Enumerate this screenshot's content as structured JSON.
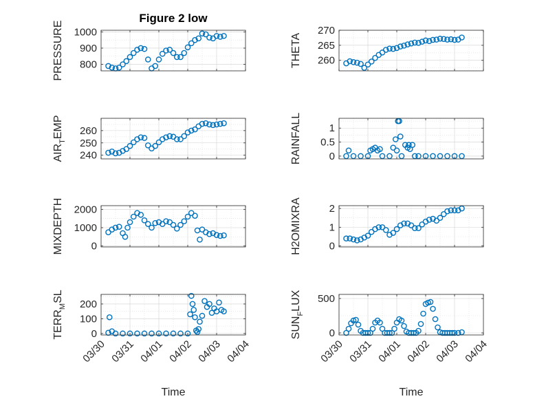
{
  "figure": {
    "title": "Figure 2 low",
    "xlabel": "Time"
  },
  "series_color": "#0072BD",
  "x_ticks": [
    "03/30",
    "03/31",
    "04/01",
    "04/02",
    "04/03",
    "04/04"
  ],
  "chart_data": [
    {
      "type": "scatter",
      "name": "pressure",
      "title": "Figure 2 low",
      "ylabel": "PRESSURE",
      "ylim": [
        760,
        1010
      ],
      "yticks": [
        "800",
        "900",
        "1000"
      ],
      "xlim": [
        "03/30",
        "04/04"
      ],
      "grid": "on",
      "x": [
        "03/30 06:00",
        "03/30 09:00",
        "03/30 12:00",
        "03/30 15:00",
        "03/30 18:00",
        "03/30 21:00",
        "03/31 00:00",
        "03/31 03:00",
        "03/31 06:00",
        "03/31 09:00",
        "03/31 12:00",
        "03/31 15:00",
        "03/31 18:00",
        "03/31 21:00",
        "04/01 00:00",
        "04/01 03:00",
        "04/01 06:00",
        "04/01 09:00",
        "04/01 12:00",
        "04/01 15:00",
        "04/01 18:00",
        "04/01 21:00",
        "04/02 00:00",
        "04/02 03:00",
        "04/02 06:00",
        "04/02 09:00",
        "04/02 12:00",
        "04/02 15:00",
        "04/02 18:00",
        "04/02 21:00",
        "04/03 00:00",
        "04/03 03:00",
        "04/03 06:00"
      ],
      "y": [
        790,
        780,
        775,
        780,
        800,
        820,
        845,
        870,
        890,
        900,
        895,
        830,
        775,
        790,
        830,
        865,
        885,
        890,
        870,
        845,
        845,
        870,
        905,
        930,
        950,
        960,
        990,
        985,
        965,
        960,
        975,
        970,
        975
      ]
    },
    {
      "type": "scatter",
      "name": "theta",
      "ylabel": "THETA",
      "ylim": [
        256.5,
        270
      ],
      "yticks": [
        "260",
        "265",
        "270"
      ],
      "xlim": [
        "03/30",
        "04/04"
      ],
      "grid": "on",
      "x": [
        "03/30 06:00",
        "03/30 09:00",
        "03/30 12:00",
        "03/30 15:00",
        "03/30 18:00",
        "03/30 21:00",
        "03/31 00:00",
        "03/31 03:00",
        "03/31 06:00",
        "03/31 09:00",
        "03/31 12:00",
        "03/31 15:00",
        "03/31 18:00",
        "03/31 21:00",
        "04/01 00:00",
        "04/01 03:00",
        "04/01 06:00",
        "04/01 09:00",
        "04/01 12:00",
        "04/01 15:00",
        "04/01 18:00",
        "04/01 21:00",
        "04/02 00:00",
        "04/02 03:00",
        "04/02 06:00",
        "04/02 09:00",
        "04/02 12:00",
        "04/02 15:00",
        "04/02 18:00",
        "04/02 21:00",
        "04/03 00:00",
        "04/03 03:00",
        "04/03 06:00"
      ],
      "y": [
        259,
        259.7,
        259.4,
        259.2,
        258.8,
        257.5,
        258.6,
        259.6,
        260.8,
        261.8,
        262.6,
        263.5,
        263.9,
        263.8,
        264.1,
        264.6,
        264.9,
        265.3,
        265.6,
        265.9,
        265.8,
        266.2,
        266.6,
        266.4,
        266.8,
        266.9,
        267.2,
        267.1,
        266.9,
        267.0,
        266.8,
        266.9,
        267.6
      ]
    },
    {
      "type": "scatter",
      "name": "air_temp",
      "ylabel": "AIR_TEMP",
      "ylabel_parts": [
        "AIR",
        "T",
        "EMP"
      ],
      "ylim": [
        237,
        270
      ],
      "yticks": [
        "240",
        "250",
        "260"
      ],
      "xlim": [
        "03/30",
        "04/04"
      ],
      "grid": "on",
      "x": [
        "03/30 06:00",
        "03/30 09:00",
        "03/30 12:00",
        "03/30 15:00",
        "03/30 18:00",
        "03/30 21:00",
        "03/31 00:00",
        "03/31 03:00",
        "03/31 06:00",
        "03/31 09:00",
        "03/31 12:00",
        "03/31 15:00",
        "03/31 18:00",
        "03/31 21:00",
        "04/01 00:00",
        "04/01 03:00",
        "04/01 06:00",
        "04/01 09:00",
        "04/01 12:00",
        "04/01 15:00",
        "04/01 18:00",
        "04/01 21:00",
        "04/02 00:00",
        "04/02 03:00",
        "04/02 06:00",
        "04/02 09:00",
        "04/02 12:00",
        "04/02 15:00",
        "04/02 18:00",
        "04/02 21:00",
        "04/03 00:00",
        "04/03 03:00",
        "04/03 06:00"
      ],
      "y": [
        242,
        243,
        241.5,
        242,
        243.5,
        245,
        247.5,
        250.5,
        253,
        254.5,
        254,
        248,
        245.5,
        247.5,
        250.5,
        253,
        254.5,
        255.5,
        255,
        253,
        253,
        255.5,
        258.5,
        260,
        261,
        263.5,
        265.5,
        266,
        265,
        264.5,
        265,
        265.5,
        266
      ]
    },
    {
      "type": "scatter",
      "name": "rainfall",
      "ylabel": "RAINFALL",
      "ylim": [
        -0.1,
        1.35
      ],
      "yticks": [
        "0",
        "0.5",
        "1"
      ],
      "xlim": [
        "03/30",
        "04/04"
      ],
      "grid": "on",
      "x": [
        "03/30 06:00",
        "03/30 08:00",
        "03/30 12:00",
        "03/30 18:00",
        "03/31 00:00",
        "03/31 02:00",
        "03/31 04:00",
        "03/31 06:00",
        "03/31 08:00",
        "03/31 10:00",
        "03/31 12:00",
        "03/31 18:00",
        "03/31 21:00",
        "03/31 23:00",
        "04/01 00:00",
        "04/01 01:00",
        "04/01 02:00",
        "04/01 03:00",
        "04/01 04:00",
        "04/01 07:00",
        "04/01 09:00",
        "04/01 10:00",
        "04/01 11:00",
        "04/01 13:00",
        "04/01 15:00",
        "04/01 18:00",
        "04/02 00:00",
        "04/02 06:00",
        "04/02 12:00",
        "04/02 18:00",
        "04/03 00:00",
        "04/03 06:00"
      ],
      "y": [
        0,
        0.2,
        0,
        0,
        0,
        0.2,
        0.25,
        0.3,
        0.2,
        0.25,
        0,
        0,
        0.3,
        0.6,
        0.2,
        1.25,
        1.25,
        0.7,
        0,
        0.4,
        0.3,
        0.4,
        0.25,
        0.4,
        0,
        0,
        0,
        0,
        0,
        0,
        0,
        0
      ]
    },
    {
      "type": "scatter",
      "name": "mixdepth",
      "ylabel": "MIXDEPTH",
      "ylim": [
        -50,
        2200
      ],
      "yticks": [
        "0",
        "1000",
        "2000"
      ],
      "xlim": [
        "03/30",
        "04/04"
      ],
      "grid": "on",
      "x": [
        "03/30 06:00",
        "03/30 09:00",
        "03/30 12:00",
        "03/30 15:00",
        "03/30 18:00",
        "03/30 20:00",
        "03/30 22:00",
        "03/31 00:00",
        "03/31 03:00",
        "03/31 06:00",
        "03/31 09:00",
        "03/31 12:00",
        "03/31 15:00",
        "03/31 18:00",
        "03/31 21:00",
        "04/01 00:00",
        "04/01 03:00",
        "04/01 06:00",
        "04/01 09:00",
        "04/01 12:00",
        "04/01 15:00",
        "04/01 18:00",
        "04/01 21:00",
        "04/02 00:00",
        "04/02 03:00",
        "04/02 06:00",
        "04/02 08:00",
        "04/02 10:00",
        "04/02 12:00",
        "04/02 15:00",
        "04/02 18:00",
        "04/02 21:00",
        "04/03 00:00",
        "04/03 03:00",
        "04/03 06:00"
      ],
      "y": [
        750,
        900,
        1000,
        1050,
        700,
        500,
        1000,
        1300,
        1600,
        1800,
        1700,
        1400,
        1200,
        1000,
        1250,
        1300,
        1200,
        1350,
        1300,
        1150,
        950,
        1150,
        1350,
        1600,
        1800,
        1650,
        850,
        350,
        900,
        750,
        650,
        700,
        600,
        550,
        580
      ]
    },
    {
      "type": "scatter",
      "name": "h2omixra",
      "ylabel": "H2OMIXRA",
      "ylim": [
        -0.05,
        2.15
      ],
      "yticks": [
        "0",
        "1",
        "2"
      ],
      "xlim": [
        "03/30",
        "04/04"
      ],
      "grid": "on",
      "x": [
        "03/30 06:00",
        "03/30 09:00",
        "03/30 12:00",
        "03/30 15:00",
        "03/30 18:00",
        "03/30 21:00",
        "03/31 00:00",
        "03/31 03:00",
        "03/31 06:00",
        "03/31 09:00",
        "03/31 12:00",
        "03/31 15:00",
        "03/31 18:00",
        "03/31 21:00",
        "04/01 00:00",
        "04/01 03:00",
        "04/01 06:00",
        "04/01 09:00",
        "04/01 12:00",
        "04/01 15:00",
        "04/01 18:00",
        "04/01 21:00",
        "04/02 00:00",
        "04/02 03:00",
        "04/02 06:00",
        "04/02 09:00",
        "04/02 12:00",
        "04/02 15:00",
        "04/02 18:00",
        "04/02 21:00",
        "04/03 00:00",
        "04/03 03:00",
        "04/03 06:00"
      ],
      "y": [
        0.4,
        0.4,
        0.35,
        0.3,
        0.35,
        0.45,
        0.55,
        0.75,
        0.9,
        1.0,
        1.0,
        0.85,
        0.6,
        0.7,
        0.9,
        1.1,
        1.2,
        1.2,
        1.1,
        0.95,
        0.95,
        1.15,
        1.3,
        1.4,
        1.45,
        1.35,
        1.5,
        1.7,
        1.85,
        1.9,
        1.9,
        1.9,
        2.0
      ]
    },
    {
      "type": "scatter",
      "name": "terr_msl",
      "ylabel": "TERR_MSL",
      "ylabel_parts": [
        "TERR",
        "M",
        "SL"
      ],
      "ylim": [
        -10,
        265
      ],
      "yticks": [
        "0",
        "100",
        "200"
      ],
      "xlim": [
        "03/30",
        "04/04"
      ],
      "grid": "on",
      "x": [
        "03/30 06:00",
        "03/30 07:00",
        "03/30 09:00",
        "03/30 12:00",
        "03/30 18:00",
        "03/31 00:00",
        "03/31 06:00",
        "03/31 12:00",
        "03/31 18:00",
        "04/01 00:00",
        "04/01 06:00",
        "04/01 12:00",
        "04/01 18:00",
        "04/02 00:00",
        "04/02 02:00",
        "04/02 03:00",
        "04/02 04:00",
        "04/02 05:00",
        "04/02 06:00",
        "04/02 07:00",
        "04/02 08:00",
        "04/02 09:00",
        "04/02 10:00",
        "04/02 12:00",
        "04/02 14:00",
        "04/02 16:00",
        "04/02 18:00",
        "04/02 20:00",
        "04/02 22:00",
        "04/03 00:00",
        "04/03 02:00",
        "04/03 04:00",
        "04/03 06:00"
      ],
      "y": [
        5,
        110,
        15,
        0,
        0,
        0,
        0,
        0,
        0,
        0,
        0,
        0,
        0,
        0,
        130,
        255,
        200,
        160,
        110,
        20,
        10,
        30,
        80,
        120,
        220,
        180,
        200,
        140,
        170,
        150,
        210,
        160,
        150
      ]
    },
    {
      "type": "scatter",
      "name": "sun_flux",
      "ylabel": "SUN_FLUX",
      "ylabel_parts": [
        "SUN",
        "F",
        "LUX"
      ],
      "ylim": [
        -30,
        560
      ],
      "yticks": [
        "0",
        "500"
      ],
      "xlim": [
        "03/30",
        "04/04"
      ],
      "grid": "on",
      "x": [
        "03/30 06:00",
        "03/30 08:00",
        "03/30 10:00",
        "03/30 12:00",
        "03/30 14:00",
        "03/30 16:00",
        "03/30 18:00",
        "03/30 20:00",
        "03/30 22:00",
        "03/31 00:00",
        "03/31 02:00",
        "03/31 04:00",
        "03/31 06:00",
        "03/31 08:00",
        "03/31 10:00",
        "03/31 12:00",
        "03/31 14:00",
        "03/31 16:00",
        "03/31 18:00",
        "03/31 20:00",
        "03/31 22:00",
        "04/01 00:00",
        "04/01 02:00",
        "04/01 04:00",
        "04/01 06:00",
        "04/01 08:00",
        "04/01 10:00",
        "04/01 12:00",
        "04/01 14:00",
        "04/01 16:00",
        "04/01 18:00",
        "04/01 20:00",
        "04/01 22:00",
        "04/02 00:00",
        "04/02 02:00",
        "04/02 04:00",
        "04/02 06:00",
        "04/02 08:00",
        "04/02 10:00",
        "04/02 12:00",
        "04/02 14:00",
        "04/02 16:00",
        "04/02 18:00",
        "04/02 20:00",
        "04/02 22:00",
        "04/03 00:00",
        "04/03 03:00",
        "04/03 06:00"
      ],
      "y": [
        0,
        60,
        140,
        180,
        190,
        120,
        30,
        0,
        0,
        0,
        0,
        60,
        150,
        180,
        150,
        60,
        0,
        0,
        0,
        0,
        60,
        150,
        200,
        180,
        100,
        20,
        0,
        0,
        0,
        0,
        30,
        130,
        280,
        420,
        440,
        450,
        350,
        200,
        80,
        10,
        0,
        0,
        0,
        0,
        0,
        0,
        0,
        10
      ]
    }
  ]
}
